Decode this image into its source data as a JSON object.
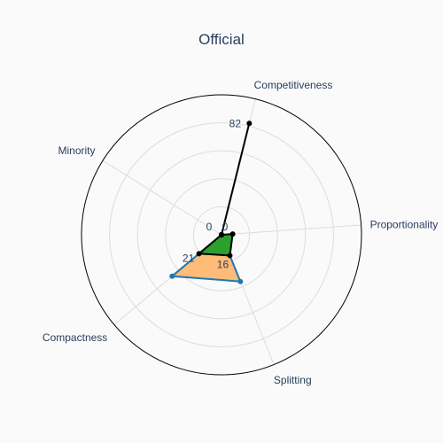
{
  "chart_data": {
    "type": "radar",
    "title": "Official",
    "axes": [
      "Competitiveness",
      "Proportionality",
      "Splitting",
      "Compactness",
      "Minority"
    ],
    "range": [
      0,
      100
    ],
    "grid": true,
    "series": [
      {
        "values": [
          0,
          0,
          36,
          46,
          0
        ],
        "color": "#1f77b4",
        "fill": "#ffbb78"
      },
      {
        "values": [
          0,
          8,
          16,
          21,
          0
        ],
        "color": "#000000",
        "fill": "#2ca02c"
      },
      {
        "values": [
          82,
          0,
          0,
          0,
          0
        ],
        "color": "#000000",
        "fill": "none"
      }
    ],
    "annotations": [
      {
        "text": "82",
        "axis": 0,
        "value": 82
      },
      {
        "text": "0",
        "axis": 0,
        "value": 0
      },
      {
        "text": "0",
        "axis": 1,
        "value": 0
      },
      {
        "text": "16",
        "axis": 2,
        "value": 16
      },
      {
        "text": "21",
        "axis": 3,
        "value": 21
      }
    ]
  }
}
